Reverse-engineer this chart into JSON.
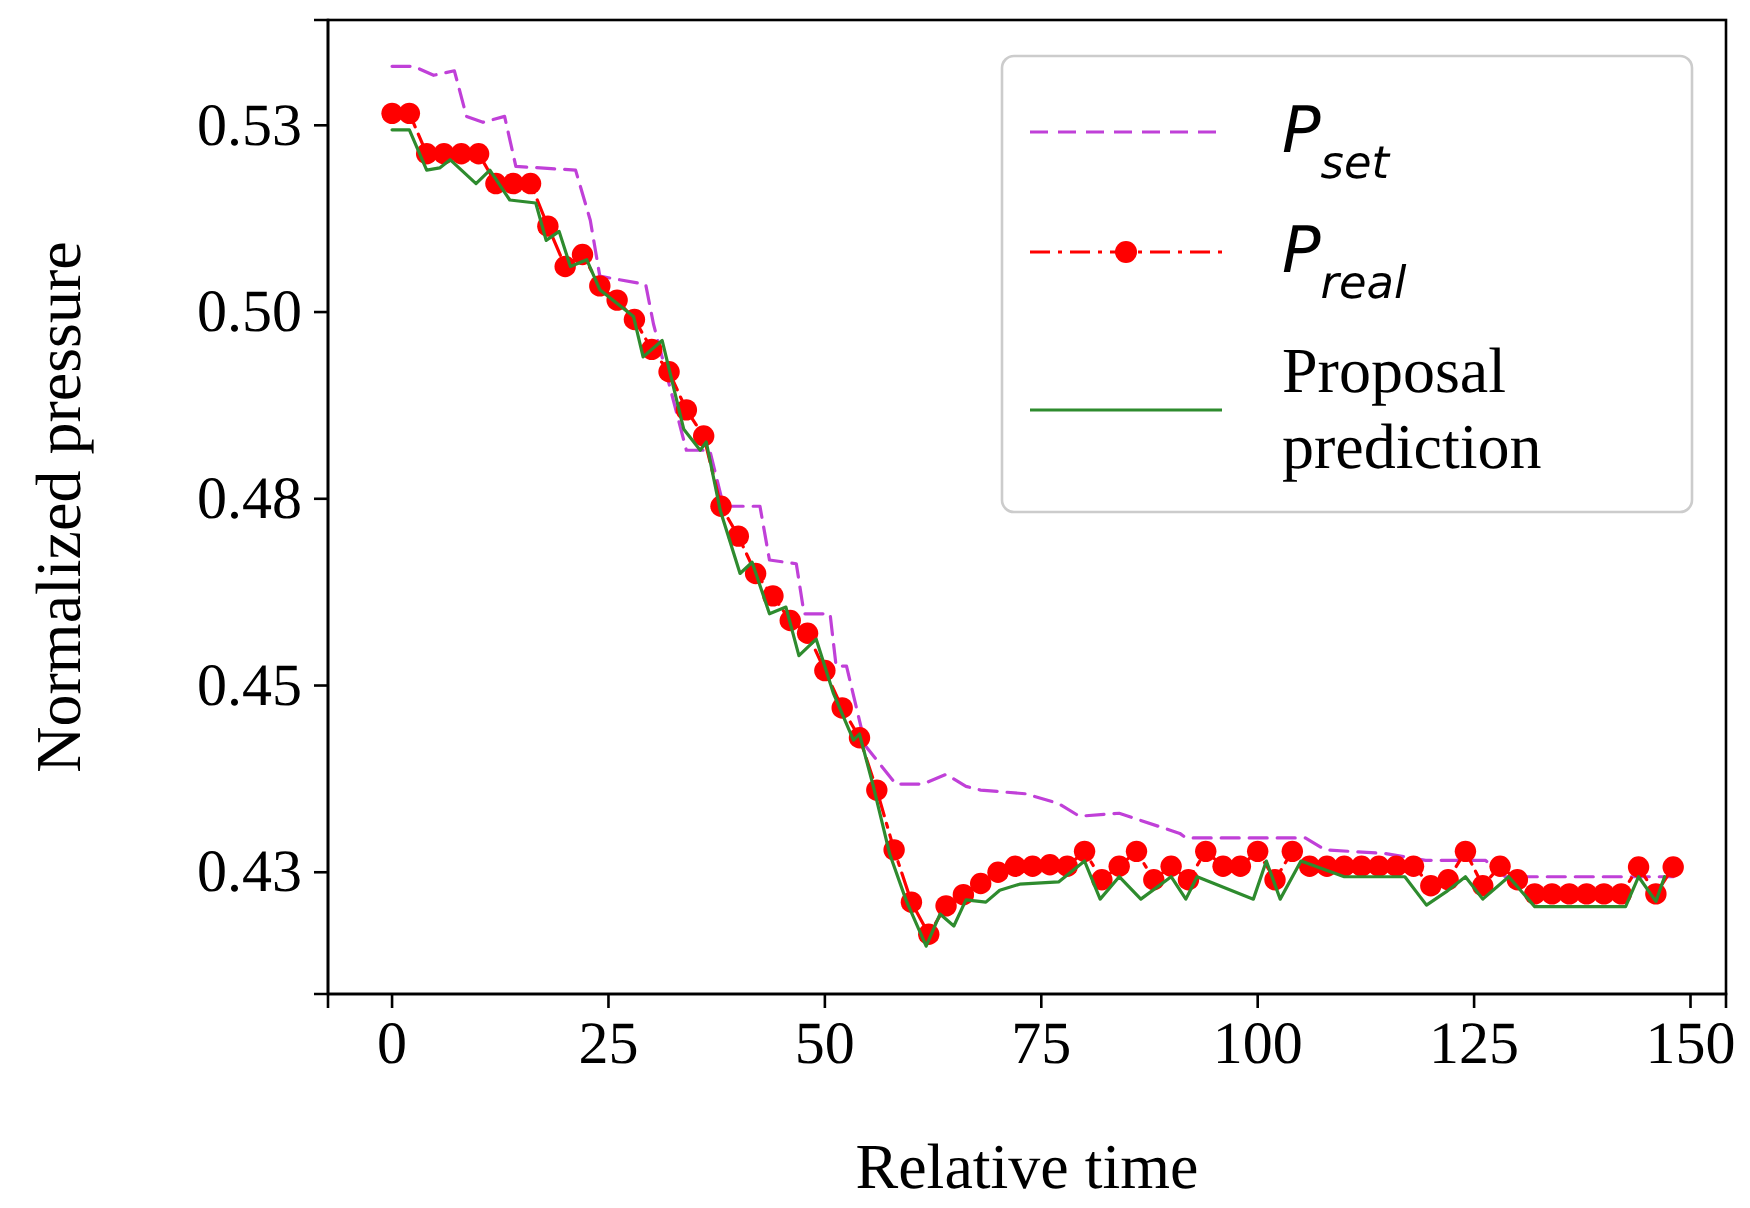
{
  "chart_data": {
    "type": "line",
    "xlabel": "Relative time",
    "ylabel": "Normalized pressure",
    "xlim": [
      -7.4,
      154.1
    ],
    "ylim": [
      0.4087,
      0.5391
    ],
    "xticks": [
      0,
      25,
      50,
      75,
      100,
      125,
      150
    ],
    "yticks": [
      {
        "value": 0.525,
        "label": "0.53"
      },
      {
        "value": 0.5,
        "label": "0.50"
      },
      {
        "value": 0.475,
        "label": "0.48"
      },
      {
        "value": 0.45,
        "label": "0.45"
      },
      {
        "value": 0.425,
        "label": "0.43"
      }
    ],
    "grid": false,
    "legend": "top right",
    "series": [
      {
        "name": "P$_{set}$",
        "color": "#c040d8",
        "line_style": "dashed",
        "marker": "none",
        "x": [
          0,
          2.5,
          4.8,
          7.2,
          8.6,
          10.5,
          13,
          14.3,
          21.2,
          22.9,
          24,
          29.3,
          30.2,
          34,
          36.7,
          38.3,
          42.5,
          43.6,
          46.7,
          47.6,
          50.6,
          51.3,
          52.5,
          54.7,
          58.2,
          61.3,
          64,
          66.3,
          68,
          73.2,
          77,
          79.4,
          84,
          91,
          91.7,
          105.5,
          107.8,
          114.8,
          119.4,
          126.3,
          128.6,
          148
        ],
        "values": [
          0.5329,
          0.5329,
          0.5317,
          0.5323,
          0.5262,
          0.5254,
          0.5262,
          0.5195,
          0.519,
          0.5123,
          0.5048,
          0.5037,
          0.4984,
          0.4815,
          0.4815,
          0.474,
          0.474,
          0.4668,
          0.4663,
          0.4596,
          0.4596,
          0.4526,
          0.4526,
          0.4419,
          0.4368,
          0.4368,
          0.4381,
          0.4365,
          0.436,
          0.4355,
          0.4342,
          0.4325,
          0.4329,
          0.4302,
          0.4296,
          0.4296,
          0.428,
          0.4275,
          0.4266,
          0.4266,
          0.4244,
          0.4244
        ]
      },
      {
        "name": "P$_{real}$",
        "color": "#ff0000",
        "line_style": "dashdot",
        "marker": "circle",
        "x": [
          0,
          2,
          4,
          6,
          8,
          10,
          12,
          14,
          16,
          18,
          20,
          22,
          24,
          26,
          28,
          30,
          32,
          34,
          36,
          38,
          40,
          42,
          44,
          46,
          48,
          50,
          52,
          54,
          56,
          58,
          60,
          62,
          64,
          66,
          68,
          70,
          72,
          74,
          76,
          78,
          80,
          82,
          84,
          86,
          88,
          90,
          92,
          94,
          96,
          98,
          100,
          102,
          104,
          106,
          108,
          110,
          112,
          114,
          116,
          118,
          120,
          122,
          124,
          126,
          128,
          130,
          132,
          134,
          136,
          138,
          140,
          142,
          144,
          146,
          148
        ],
        "values": [
          0.5266,
          0.5266,
          0.5212,
          0.5212,
          0.5212,
          0.5212,
          0.5172,
          0.5172,
          0.5172,
          0.5115,
          0.5061,
          0.5077,
          0.5035,
          0.5016,
          0.499,
          0.495,
          0.492,
          0.4869,
          0.4834,
          0.474,
          0.47,
          0.465,
          0.462,
          0.4587,
          0.457,
          0.452,
          0.447,
          0.443,
          0.436,
          0.428,
          0.421,
          0.4167,
          0.4205,
          0.422,
          0.4235,
          0.425,
          0.4258,
          0.4258,
          0.426,
          0.4258,
          0.4278,
          0.424,
          0.4258,
          0.4278,
          0.424,
          0.4258,
          0.424,
          0.4278,
          0.4258,
          0.4258,
          0.4278,
          0.424,
          0.4278,
          0.4258,
          0.4258,
          0.4258,
          0.4258,
          0.4258,
          0.4258,
          0.4258,
          0.4232,
          0.424,
          0.4278,
          0.4232,
          0.4258,
          0.424,
          0.4221,
          0.4221,
          0.4221,
          0.4221,
          0.4221,
          0.4221,
          0.4257,
          0.4221,
          0.4257
        ]
      },
      {
        "name": "Proposal prediction",
        "color": "#2e8b2e",
        "line_style": "solid",
        "marker": "none",
        "x": [
          0,
          2,
          4,
          5.5,
          6.7,
          9.7,
          11.3,
          13.6,
          16.6,
          17.8,
          19.3,
          20.6,
          22.5,
          24,
          27.9,
          29,
          31.2,
          33.7,
          35.6,
          36.3,
          37.9,
          40.2,
          41.6,
          43.6,
          45.5,
          47,
          49,
          51,
          53.3,
          54,
          55.6,
          57.5,
          59.4,
          61.7,
          63.3,
          64.9,
          66.3,
          68.6,
          70.2,
          72.5,
          77,
          80,
          81.8,
          84,
          86.5,
          90,
          91.7,
          93,
          99.5,
          101,
          102.6,
          105,
          110,
          117,
          119.5,
          121.8,
          124,
          126,
          129,
          132,
          142.5,
          144,
          146,
          147
        ],
        "values": [
          0.5244,
          0.5244,
          0.519,
          0.5193,
          0.5204,
          0.5172,
          0.519,
          0.515,
          0.5146,
          0.5096,
          0.5108,
          0.5061,
          0.507,
          0.503,
          0.4994,
          0.494,
          0.4962,
          0.4843,
          0.4815,
          0.4826,
          0.4735,
          0.465,
          0.4665,
          0.4596,
          0.4605,
          0.454,
          0.4562,
          0.4489,
          0.4427,
          0.4435,
          0.4365,
          0.4274,
          0.4212,
          0.4151,
          0.4194,
          0.4178,
          0.4213,
          0.421,
          0.4226,
          0.4234,
          0.4237,
          0.4265,
          0.4214,
          0.4244,
          0.4214,
          0.4244,
          0.4214,
          0.4244,
          0.4214,
          0.4265,
          0.4214,
          0.4265,
          0.4244,
          0.4244,
          0.4206,
          0.4224,
          0.4244,
          0.4214,
          0.4244,
          0.4204,
          0.4204,
          0.4244,
          0.4211,
          0.4244
        ]
      }
    ]
  }
}
